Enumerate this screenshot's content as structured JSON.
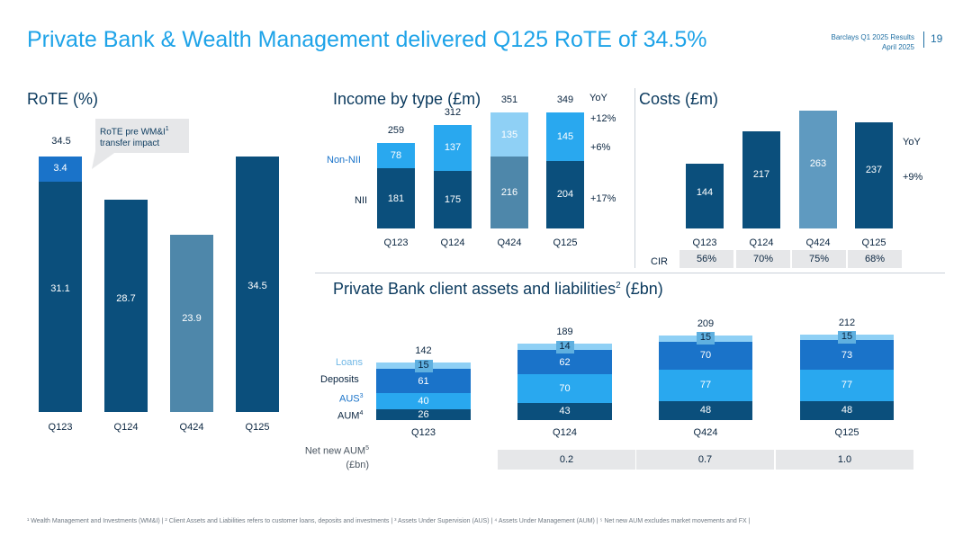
{
  "header": {
    "title": "Private Bank & Wealth Management delivered Q125 RoTE of 34.5%",
    "brand_line1": "Barclays Q1 2025 Results",
    "brand_line2": "April 2025",
    "page_number": "19"
  },
  "colors": {
    "dark": "#0b4f7c",
    "mid": "#1a73c9",
    "light": "#29a8ef",
    "pale": "#8fd0f5",
    "grey": "#4e87aa",
    "grey_light": "#5f9ac0",
    "accent": "#1ea3e8"
  },
  "rote": {
    "title": "RoTE (%)",
    "callout_line1": "RoTE pre WM&I",
    "callout_sup": "1",
    "callout_line2": "transfer impact",
    "total_top": "34.5",
    "chart_data": {
      "type": "bar",
      "categories": [
        "Q123",
        "Q124",
        "Q424",
        "Q125"
      ],
      "series": [
        {
          "name": "RoTE",
          "values": [
            31.1,
            28.7,
            23.9,
            34.5
          ]
        },
        {
          "name": "WM&I transfer impact",
          "values": [
            3.4,
            0,
            0,
            0
          ]
        }
      ],
      "labels": [
        "31.1",
        "28.7",
        "23.9",
        "34.5"
      ],
      "extra_label": "3.4",
      "ylim": [
        0,
        34.5
      ]
    }
  },
  "income": {
    "title": "Income by type (£m)",
    "yoy_header": "YoY",
    "legend_non_nii": "Non-NII",
    "legend_nii": "NII",
    "chart_data": {
      "type": "bar",
      "categories": [
        "Q123",
        "Q124",
        "Q424",
        "Q125"
      ],
      "series": [
        {
          "name": "NII",
          "values": [
            181,
            175,
            216,
            204
          ]
        },
        {
          "name": "Non-NII",
          "values": [
            78,
            137,
            135,
            145
          ]
        }
      ],
      "totals": [
        259,
        312,
        351,
        349
      ],
      "yoy": {
        "total": "+12%",
        "non_nii": "+6%",
        "nii": "+17%"
      }
    }
  },
  "costs": {
    "title": "Costs (£m)",
    "yoy_header": "YoY",
    "yoy_value": "+9%",
    "cir_label": "CIR",
    "cir_values": [
      "56%",
      "70%",
      "75%",
      "68%"
    ],
    "chart_data": {
      "type": "bar",
      "categories": [
        "Q123",
        "Q124",
        "Q424",
        "Q125"
      ],
      "values": [
        144,
        217,
        263,
        237
      ]
    }
  },
  "assets": {
    "title_main": "Private Bank client assets and liabilities",
    "title_sup": "2",
    "title_tail": " (£bn)",
    "legend": {
      "loans": "Loans",
      "deposits": "Deposits",
      "aus": "AUS",
      "aus_sup": "3",
      "aum": "AUM",
      "aum_sup": "4"
    },
    "nna_label_line1": "Net new AUM",
    "nna_sup": "5",
    "nna_label_line2": "(£bn)",
    "nna_values": [
      "0.2",
      "0.7",
      "1.0"
    ],
    "chart_data": {
      "type": "bar",
      "categories": [
        "Q123",
        "Q124",
        "Q424",
        "Q125"
      ],
      "series": [
        {
          "name": "AUM",
          "values": [
            26,
            43,
            48,
            48
          ]
        },
        {
          "name": "AUS",
          "values": [
            40,
            70,
            77,
            77
          ]
        },
        {
          "name": "Deposits",
          "values": [
            61,
            62,
            70,
            73
          ]
        },
        {
          "name": "Loans",
          "values": [
            15,
            14,
            15,
            15
          ]
        }
      ],
      "totals": [
        142,
        189,
        209,
        212
      ]
    }
  },
  "footnote": "¹ Wealth Management and Investments (WM&I) | ² Client Assets and Liabilities refers to customer loans, deposits and investments | ³ Assets Under Supervision (AUS) | ⁴ Assets Under Management (AUM) | ⁵ Net new AUM excludes market movements and FX |"
}
